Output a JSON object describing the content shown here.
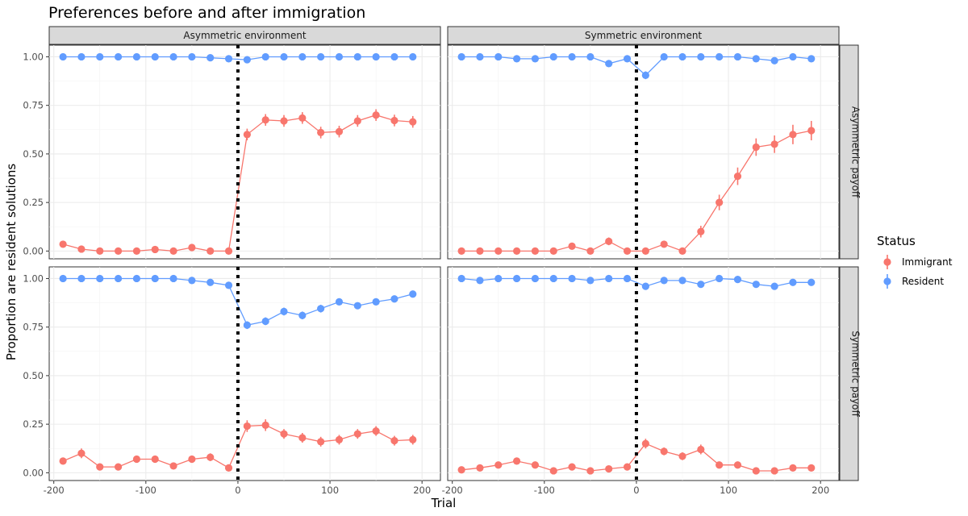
{
  "chart_data": {
    "type": "line",
    "title": "Preferences before and after immigration",
    "xlabel": "Trial",
    "ylabel": "Proportion are resident solutions",
    "xlim": [
      -205,
      220
    ],
    "ylim": [
      -0.04,
      1.06
    ],
    "x_ticks": [
      -200,
      -100,
      0,
      100,
      200
    ],
    "x_tick_labels": [
      "-200",
      "-100",
      "0",
      "100",
      "200"
    ],
    "y_ticks": [
      0,
      0.25,
      0.5,
      0.75,
      1
    ],
    "y_tick_labels": [
      "0.00",
      "0.25",
      "0.50",
      "0.75",
      "1.00"
    ],
    "vline_x": 0,
    "grid": true,
    "legend": {
      "title": "Status",
      "position": "right",
      "entries": [
        {
          "name": "Immigrant",
          "color": "#F8766D"
        },
        {
          "name": "Resident",
          "color": "#619CFF"
        }
      ]
    },
    "column_facets": [
      "Asymmetric environment",
      "Symmetric environment"
    ],
    "row_facets": [
      "Asymmetric payoff",
      "Symmetric payoff"
    ],
    "x": [
      -190,
      -170,
      -150,
      -130,
      -110,
      -90,
      -70,
      -50,
      -30,
      -10,
      10,
      30,
      50,
      70,
      90,
      110,
      130,
      150,
      170,
      190
    ],
    "panels": [
      {
        "column": "Asymmetric environment",
        "row": "Asymmetric payoff",
        "series": [
          {
            "name": "Immigrant",
            "values": [
              0.035,
              0.01,
              0.0,
              0.0,
              0.0,
              0.008,
              0.0,
              0.018,
              0.0,
              0.0,
              0.6,
              0.675,
              0.67,
              0.685,
              0.61,
              0.615,
              0.67,
              0.7,
              0.672,
              0.665
            ],
            "err": [
              0.01,
              0.008,
              0.005,
              0.005,
              0.005,
              0.008,
              0.005,
              0.01,
              0.005,
              0.005,
              0.03,
              0.03,
              0.03,
              0.03,
              0.03,
              0.03,
              0.03,
              0.03,
              0.03,
              0.03
            ]
          },
          {
            "name": "Resident",
            "values": [
              1.0,
              1.0,
              1.0,
              1.0,
              1.0,
              1.0,
              1.0,
              1.0,
              0.995,
              0.99,
              0.985,
              1.0,
              1.0,
              1.0,
              1.0,
              1.0,
              1.0,
              1.0,
              1.0,
              1.0
            ],
            "err": [
              0.004,
              0.004,
              0.004,
              0.004,
              0.004,
              0.004,
              0.004,
              0.004,
              0.005,
              0.006,
              0.008,
              0.004,
              0.004,
              0.004,
              0.004,
              0.004,
              0.004,
              0.004,
              0.004,
              0.004
            ]
          }
        ]
      },
      {
        "column": "Symmetric environment",
        "row": "Asymmetric payoff",
        "series": [
          {
            "name": "Immigrant",
            "values": [
              0.0,
              0.0,
              0.0,
              0.0,
              0.0,
              0.0,
              0.025,
              0.0,
              0.05,
              0.0,
              0.0,
              0.035,
              0.0,
              0.1,
              0.25,
              0.385,
              0.535,
              0.55,
              0.6,
              0.62
            ],
            "err": [
              0.005,
              0.005,
              0.005,
              0.005,
              0.005,
              0.005,
              0.012,
              0.005,
              0.02,
              0.005,
              0.005,
              0.012,
              0.005,
              0.03,
              0.04,
              0.045,
              0.045,
              0.045,
              0.05,
              0.05
            ]
          },
          {
            "name": "Resident",
            "values": [
              1.0,
              1.0,
              1.0,
              0.99,
              0.99,
              1.0,
              1.0,
              1.0,
              0.965,
              0.99,
              0.905,
              1.0,
              1.0,
              1.0,
              1.0,
              1.0,
              0.99,
              0.98,
              1.0,
              0.99
            ],
            "err": [
              0.004,
              0.004,
              0.004,
              0.006,
              0.006,
              0.004,
              0.004,
              0.004,
              0.012,
              0.006,
              0.02,
              0.004,
              0.004,
              0.004,
              0.004,
              0.004,
              0.006,
              0.008,
              0.004,
              0.006
            ]
          }
        ]
      },
      {
        "column": "Asymmetric environment",
        "row": "Symmetric payoff",
        "series": [
          {
            "name": "Immigrant",
            "values": [
              0.06,
              0.1,
              0.03,
              0.03,
              0.07,
              0.07,
              0.035,
              0.07,
              0.08,
              0.025,
              0.24,
              0.245,
              0.2,
              0.18,
              0.16,
              0.17,
              0.2,
              0.215,
              0.165,
              0.17
            ],
            "err": [
              0.01,
              0.025,
              0.01,
              0.01,
              0.012,
              0.012,
              0.01,
              0.015,
              0.02,
              0.008,
              0.03,
              0.03,
              0.025,
              0.025,
              0.025,
              0.025,
              0.025,
              0.025,
              0.025,
              0.025
            ]
          },
          {
            "name": "Resident",
            "values": [
              1.0,
              1.0,
              1.0,
              1.0,
              1.0,
              1.0,
              1.0,
              0.99,
              0.98,
              0.965,
              0.76,
              0.78,
              0.83,
              0.81,
              0.845,
              0.88,
              0.86,
              0.88,
              0.895,
              0.92
            ],
            "err": [
              0.004,
              0.004,
              0.004,
              0.004,
              0.004,
              0.004,
              0.004,
              0.006,
              0.008,
              0.01,
              0.02,
              0.02,
              0.02,
              0.02,
              0.02,
              0.015,
              0.015,
              0.015,
              0.012,
              0.012
            ]
          }
        ]
      },
      {
        "column": "Symmetric environment",
        "row": "Symmetric payoff",
        "series": [
          {
            "name": "Immigrant",
            "values": [
              0.015,
              0.025,
              0.04,
              0.06,
              0.04,
              0.01,
              0.03,
              0.01,
              0.02,
              0.03,
              0.15,
              0.11,
              0.085,
              0.12,
              0.04,
              0.04,
              0.01,
              0.01,
              0.025,
              0.025
            ],
            "err": [
              0.006,
              0.008,
              0.01,
              0.012,
              0.01,
              0.006,
              0.008,
              0.006,
              0.008,
              0.01,
              0.025,
              0.02,
              0.02,
              0.025,
              0.012,
              0.012,
              0.006,
              0.006,
              0.008,
              0.008
            ]
          },
          {
            "name": "Resident",
            "values": [
              1.0,
              0.99,
              1.0,
              1.0,
              1.0,
              1.0,
              1.0,
              0.99,
              1.0,
              1.0,
              0.96,
              0.99,
              0.99,
              0.97,
              1.0,
              0.995,
              0.97,
              0.96,
              0.98,
              0.98
            ],
            "err": [
              0.004,
              0.006,
              0.004,
              0.004,
              0.004,
              0.004,
              0.004,
              0.006,
              0.004,
              0.004,
              0.01,
              0.006,
              0.006,
              0.008,
              0.004,
              0.004,
              0.008,
              0.01,
              0.006,
              0.006
            ]
          }
        ]
      }
    ]
  }
}
